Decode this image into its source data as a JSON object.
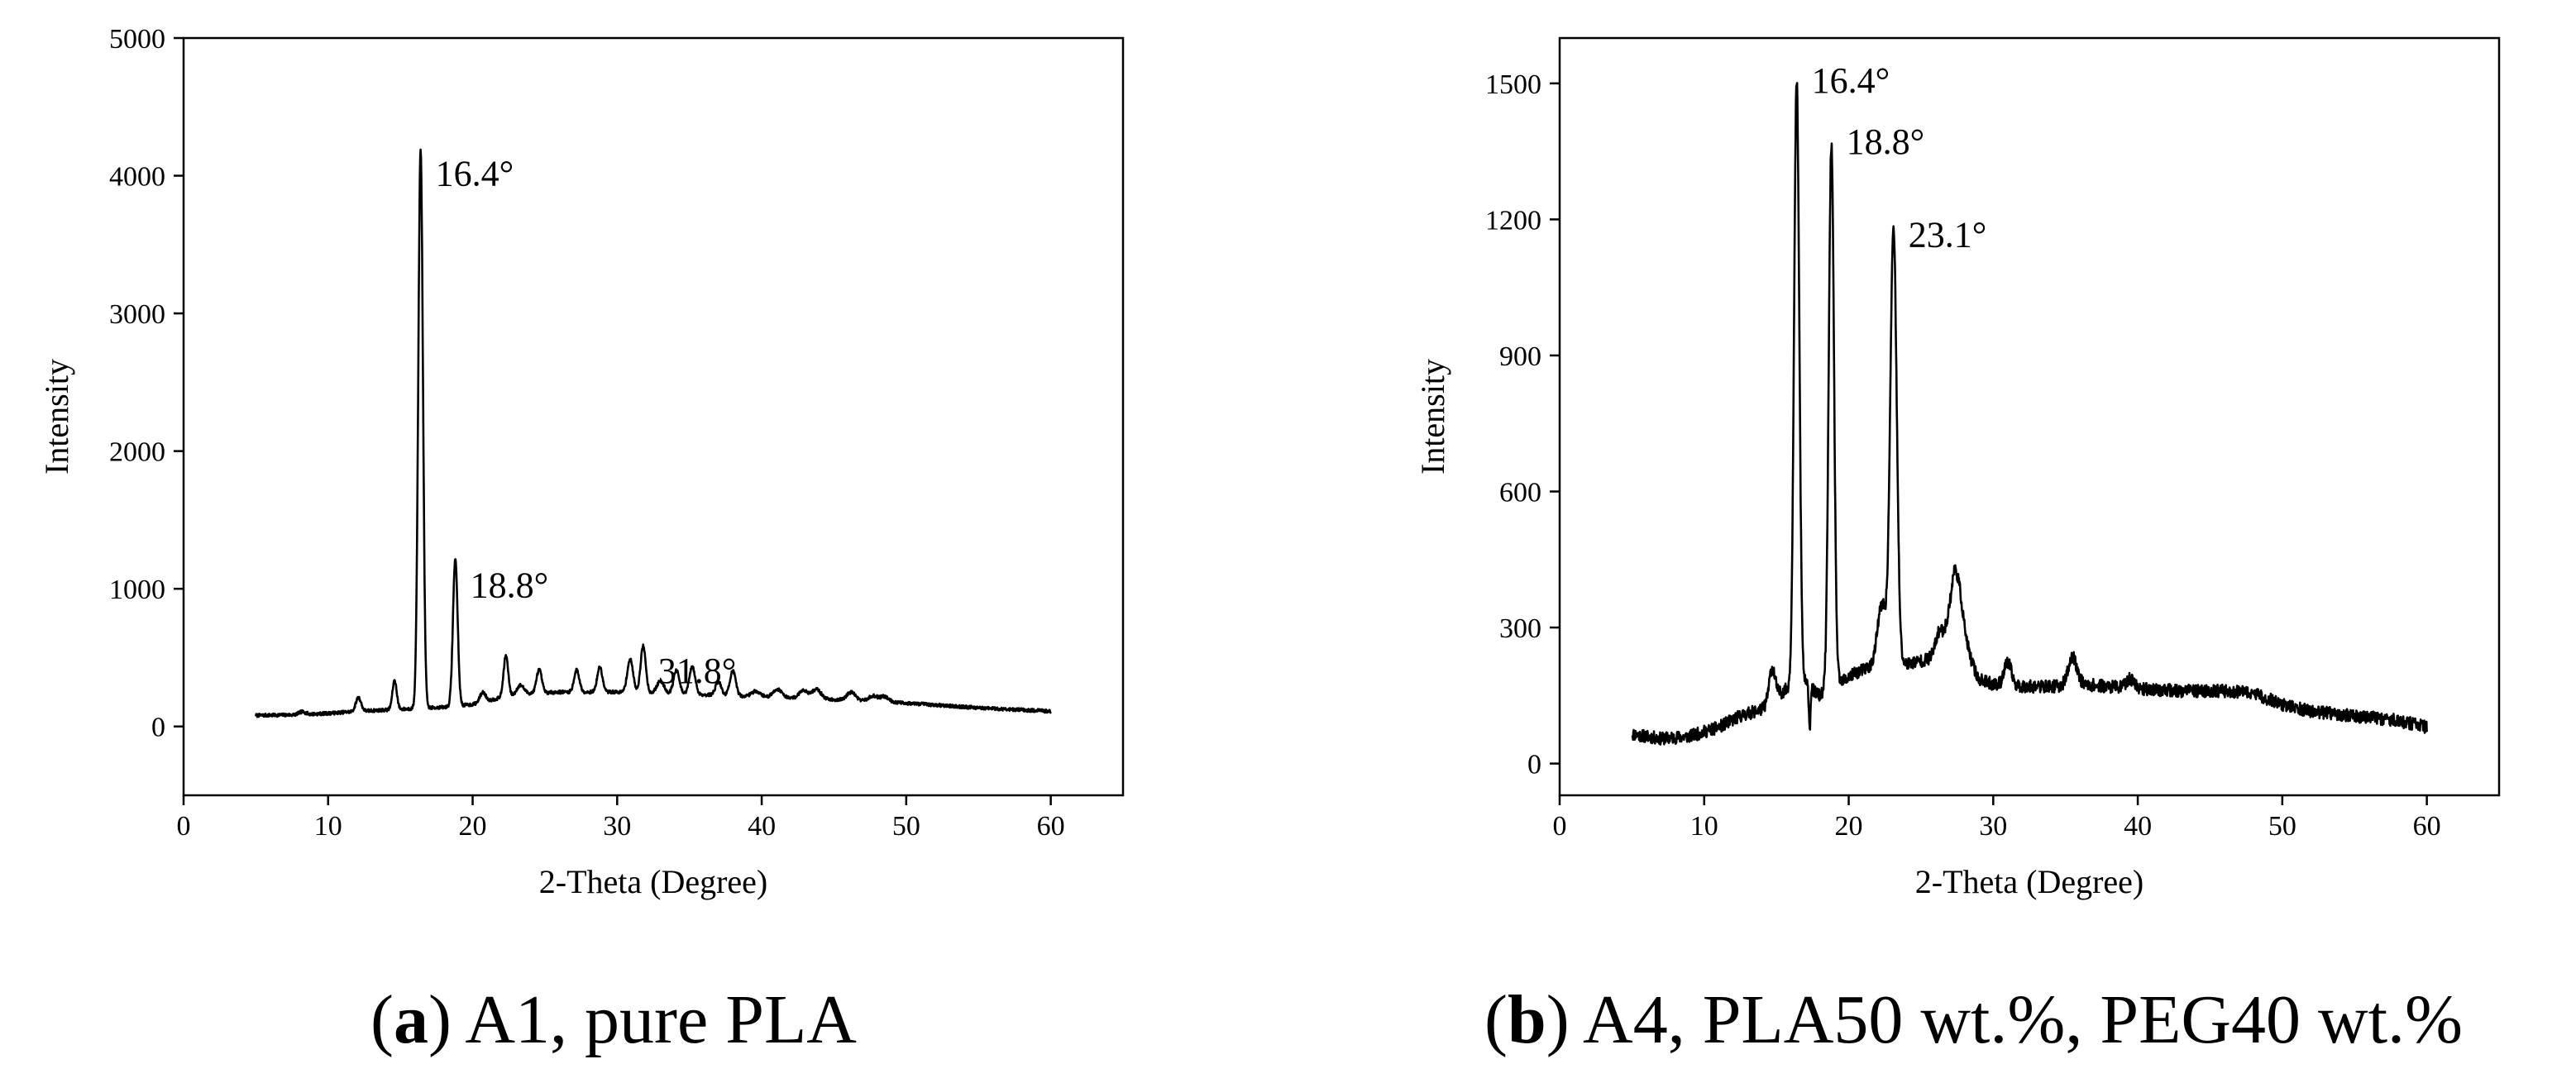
{
  "chart_data": [
    {
      "type": "line",
      "title": "",
      "xlabel": "2-Theta (Degree)",
      "ylabel": "Intensity",
      "xlim": [
        0,
        65
      ],
      "ylim": [
        -500,
        5000
      ],
      "xticks": [
        0,
        10,
        20,
        30,
        40,
        50,
        60
      ],
      "yticks": [
        0,
        1000,
        2000,
        3000,
        4000,
        5000
      ],
      "grid": false,
      "x_range": [
        5,
        60
      ],
      "baseline_points": [
        [
          5,
          80
        ],
        [
          8,
          85
        ],
        [
          10,
          95
        ],
        [
          12,
          110
        ],
        [
          14,
          120
        ],
        [
          16,
          130
        ],
        [
          18,
          140
        ],
        [
          20,
          160
        ],
        [
          22,
          210
        ],
        [
          24,
          240
        ],
        [
          26,
          250
        ],
        [
          28,
          250
        ],
        [
          30,
          250
        ],
        [
          33,
          240
        ],
        [
          36,
          230
        ],
        [
          40,
          215
        ],
        [
          45,
          195
        ],
        [
          50,
          170
        ],
        [
          55,
          135
        ],
        [
          60,
          110
        ]
      ],
      "peaks": [
        [
          8.2,
          20,
          0.25
        ],
        [
          12.1,
          100,
          0.18
        ],
        [
          14.6,
          210,
          0.15
        ],
        [
          16.4,
          4060,
          0.16
        ],
        [
          18.8,
          1070,
          0.16
        ],
        [
          20.7,
          70,
          0.2
        ],
        [
          22.3,
          300,
          0.16
        ],
        [
          23.3,
          70,
          0.25
        ],
        [
          24.6,
          170,
          0.18
        ],
        [
          27.2,
          160,
          0.18
        ],
        [
          28.8,
          180,
          0.18
        ],
        [
          30.9,
          240,
          0.2
        ],
        [
          31.8,
          340,
          0.18
        ],
        [
          33.0,
          90,
          0.25
        ],
        [
          34.1,
          170,
          0.2
        ],
        [
          35.2,
          200,
          0.2
        ],
        [
          37.0,
          100,
          0.2
        ],
        [
          38.0,
          180,
          0.2
        ],
        [
          39.6,
          40,
          0.3
        ],
        [
          41.1,
          60,
          0.3
        ],
        [
          42.9,
          60,
          0.3
        ],
        [
          43.8,
          70,
          0.3
        ],
        [
          46.2,
          60,
          0.3
        ],
        [
          47.7,
          40,
          0.3
        ],
        [
          48.5,
          40,
          0.3
        ]
      ],
      "noise": 12,
      "seed": 7,
      "annotations": [
        {
          "label": "16.4°",
          "x": 16.4,
          "y": 4060
        },
        {
          "label": "18.8°",
          "x": 18.8,
          "y": 1070
        },
        {
          "label": "31.8°",
          "x": 31.8,
          "y": 450
        }
      ],
      "caption_letter": "a",
      "caption_text": ") A1, pure PLA"
    },
    {
      "type": "line",
      "title": "",
      "xlabel": "2-Theta (Degree)",
      "ylabel": "Intensity",
      "xlim": [
        0,
        65
      ],
      "ylim": [
        -70,
        1600
      ],
      "xticks": [
        0,
        10,
        20,
        30,
        40,
        50,
        60
      ],
      "yticks": [
        0,
        300,
        600,
        900,
        1200,
        1500
      ],
      "grid": false,
      "x_range": [
        5,
        60
      ],
      "baseline_points": [
        [
          5,
          65
        ],
        [
          7,
          55
        ],
        [
          9,
          60
        ],
        [
          11,
          80
        ],
        [
          12.5,
          105
        ],
        [
          14,
          120
        ],
        [
          15,
          150
        ],
        [
          16,
          170
        ],
        [
          17,
          175
        ],
        [
          18,
          150
        ],
        [
          19.5,
          180
        ],
        [
          20.5,
          200
        ],
        [
          22,
          220
        ],
        [
          24,
          220
        ],
        [
          25.5,
          230
        ],
        [
          26.5,
          260
        ],
        [
          27.3,
          340
        ],
        [
          28,
          260
        ],
        [
          29,
          185
        ],
        [
          30,
          175
        ],
        [
          32,
          170
        ],
        [
          34,
          170
        ],
        [
          36,
          175
        ],
        [
          38,
          170
        ],
        [
          40,
          165
        ],
        [
          43,
          160
        ],
        [
          46,
          160
        ],
        [
          48,
          155
        ],
        [
          50,
          130
        ],
        [
          52,
          115
        ],
        [
          55,
          105
        ],
        [
          58,
          95
        ],
        [
          60,
          80
        ]
      ],
      "peaks": [
        [
          14.7,
          70,
          0.2
        ],
        [
          16.4,
          1330,
          0.18
        ],
        [
          17.3,
          -90,
          0.05
        ],
        [
          18.8,
          1200,
          0.18
        ],
        [
          22.3,
          130,
          0.3
        ],
        [
          23.1,
          960,
          0.22
        ],
        [
          26.3,
          40,
          0.25
        ],
        [
          27.5,
          100,
          0.4
        ],
        [
          31.0,
          50,
          0.25
        ],
        [
          35.5,
          60,
          0.3
        ],
        [
          39.5,
          20,
          0.3
        ]
      ],
      "noise": 14,
      "seed": 11,
      "annotations": [
        {
          "label": "16.4°",
          "x": 16.4,
          "y": 1520
        },
        {
          "label": "18.8°",
          "x": 18.8,
          "y": 1385
        },
        {
          "label": "23.1°",
          "x": 23.1,
          "y": 1180
        }
      ],
      "caption_letter": "b",
      "caption_text": ") A4, PLA50 wt.%, PEG40 wt.%"
    }
  ]
}
